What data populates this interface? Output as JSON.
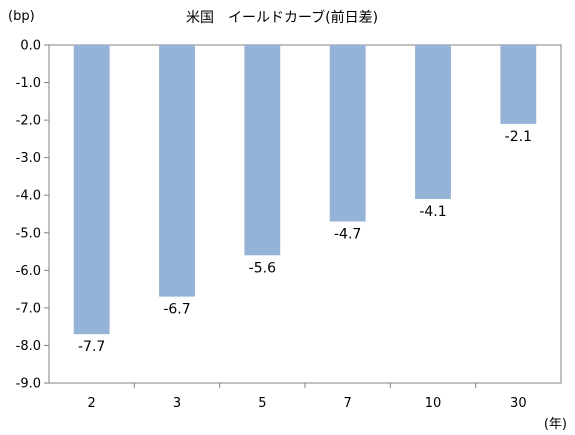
{
  "chart_data": {
    "type": "bar",
    "title": "米国　イールドカーブ(前日差)",
    "ylabel": "(bp)",
    "xlabel": "(年)",
    "categories": [
      "2",
      "3",
      "5",
      "7",
      "10",
      "30"
    ],
    "values": [
      -7.7,
      -6.7,
      -5.6,
      -4.7,
      -4.1,
      -2.1
    ],
    "data_labels": [
      "-7.7",
      "-6.7",
      "-5.6",
      "-4.7",
      "-4.1",
      "-2.1"
    ],
    "ylim": [
      -9.0,
      0.0
    ],
    "yticks": [
      0.0,
      -1.0,
      -2.0,
      -3.0,
      -4.0,
      -5.0,
      -6.0,
      -7.0,
      -8.0,
      -9.0
    ],
    "ytick_labels": [
      "0.0",
      "-1.0",
      "-2.0",
      "-3.0",
      "-4.0",
      "-5.0",
      "-6.0",
      "-7.0",
      "-8.0",
      "-9.0"
    ],
    "grid": false,
    "legend": "none",
    "bar_color": "#95b3d7",
    "axis_color": "#808080"
  }
}
